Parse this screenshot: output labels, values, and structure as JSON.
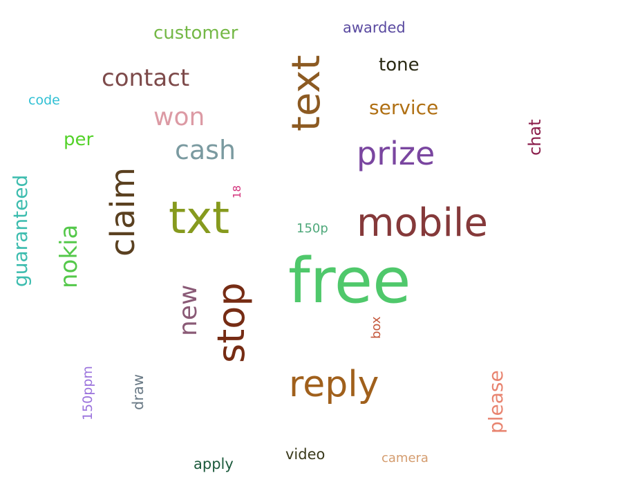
{
  "words": {
    "free": {
      "text": "free",
      "color": "#4fc86b"
    },
    "mobile": {
      "text": "mobile",
      "color": "#85393a"
    },
    "txt": {
      "text": "txt",
      "color": "#869a1e"
    },
    "text": {
      "text": "text",
      "color": "#8c5a22"
    },
    "claim": {
      "text": "claim",
      "color": "#5a4020"
    },
    "stop": {
      "text": "stop",
      "color": "#762c14"
    },
    "reply": {
      "text": "reply",
      "color": "#a0601c"
    },
    "prize": {
      "text": "prize",
      "color": "#7a46a0"
    },
    "cash": {
      "text": "cash",
      "color": "#7a9aa0"
    },
    "won": {
      "text": "won",
      "color": "#dc9aa4"
    },
    "contact": {
      "text": "contact",
      "color": "#7d4a4a"
    },
    "new": {
      "text": "new",
      "color": "#8a5a76"
    },
    "nokia": {
      "text": "nokia",
      "color": "#54c84a"
    },
    "guaranteed": {
      "text": "guaranteed",
      "color": "#3cbcae"
    },
    "customer": {
      "text": "customer",
      "color": "#74b846"
    },
    "service": {
      "text": "service",
      "color": "#b07014"
    },
    "tone": {
      "text": "tone",
      "color": "#2a2a14"
    },
    "awarded": {
      "text": "awarded",
      "color": "#5a4aa0"
    },
    "per": {
      "text": "per",
      "color": "#54d22a"
    },
    "code": {
      "text": "code",
      "color": "#30c0d4"
    },
    "chat": {
      "text": "chat",
      "color": "#8a1c4a"
    },
    "please": {
      "text": "please",
      "color": "#e88470"
    },
    "150p": {
      "text": "150p",
      "color": "#4ea87a"
    },
    "18": {
      "text": "18",
      "color": "#d2307a"
    },
    "box": {
      "text": "box",
      "color": "#c4583c"
    },
    "150ppm": {
      "text": "150ppm",
      "color": "#9a72dc"
    },
    "draw": {
      "text": "draw",
      "color": "#6a7a86"
    },
    "video": {
      "text": "video",
      "color": "#3a3a1c"
    },
    "camera": {
      "text": "camera",
      "color": "#d49c6e"
    },
    "apply": {
      "text": "apply",
      "color": "#1c5a3c"
    }
  }
}
